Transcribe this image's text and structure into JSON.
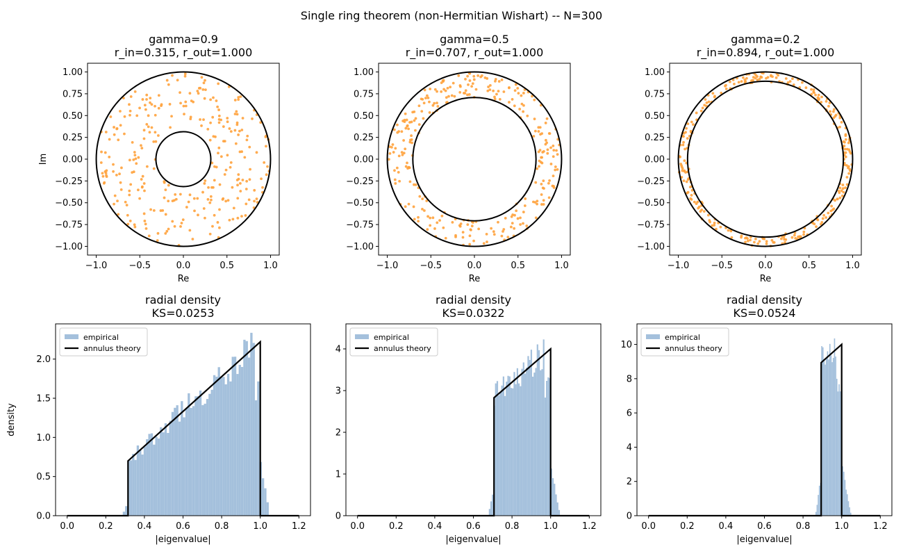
{
  "suptitle": "Single ring theorem (non-Hermitian Wishart) -- N=300",
  "colors": {
    "scatter": "#ffa23c",
    "hist_fill": "#a4c0dc",
    "theory_line": "#000000",
    "axes": "#000000"
  },
  "chart_data": [
    {
      "type": "scatter",
      "title_lines": [
        "gamma=0.9",
        "r_in=0.315, r_out=1.000"
      ],
      "xlabel": "Re",
      "ylabel": "Im",
      "xlim": [
        -1.1,
        1.1
      ],
      "ylim": [
        -1.1,
        1.1
      ],
      "xticks": [
        "−1.0",
        "−0.5",
        "0.0",
        "0.5",
        "1.0"
      ],
      "xtick_values": [
        -1.0,
        -0.5,
        0.0,
        0.5,
        1.0
      ],
      "yticks": [
        "1.00",
        "0.75",
        "0.50",
        "0.25",
        "0.00",
        "−0.25",
        "−0.50",
        "−0.75",
        "−1.00"
      ],
      "ytick_values": [
        1.0,
        0.75,
        0.5,
        0.25,
        0.0,
        -0.25,
        -0.5,
        -0.75,
        -1.0
      ],
      "gamma": 0.9,
      "r_in": 0.315,
      "r_out": 1.0,
      "n_points": 300
    },
    {
      "type": "scatter",
      "title_lines": [
        "gamma=0.5",
        "r_in=0.707, r_out=1.000"
      ],
      "xlabel": "Re",
      "ylabel": "",
      "xlim": [
        -1.1,
        1.1
      ],
      "ylim": [
        -1.1,
        1.1
      ],
      "xticks": [
        "−1.0",
        "−0.5",
        "0.0",
        "0.5",
        "1.0"
      ],
      "xtick_values": [
        -1.0,
        -0.5,
        0.0,
        0.5,
        1.0
      ],
      "yticks": [
        "1.00",
        "0.75",
        "0.50",
        "0.25",
        "0.00",
        "−0.25",
        "−0.50",
        "−0.75",
        "−1.00"
      ],
      "ytick_values": [
        1.0,
        0.75,
        0.5,
        0.25,
        0.0,
        -0.25,
        -0.5,
        -0.75,
        -1.0
      ],
      "gamma": 0.5,
      "r_in": 0.707,
      "r_out": 1.0,
      "n_points": 300
    },
    {
      "type": "scatter",
      "title_lines": [
        "gamma=0.2",
        "r_in=0.894, r_out=1.000"
      ],
      "xlabel": "Re",
      "ylabel": "",
      "xlim": [
        -1.1,
        1.1
      ],
      "ylim": [
        -1.1,
        1.1
      ],
      "xticks": [
        "−1.0",
        "−0.5",
        "0.0",
        "0.5",
        "1.0"
      ],
      "xtick_values": [
        -1.0,
        -0.5,
        0.0,
        0.5,
        1.0
      ],
      "yticks": [
        "1.00",
        "0.75",
        "0.50",
        "0.25",
        "0.00",
        "−0.25",
        "−0.50",
        "−0.75",
        "−1.00"
      ],
      "ytick_values": [
        1.0,
        0.75,
        0.5,
        0.25,
        0.0,
        -0.25,
        -0.5,
        -0.75,
        -1.0
      ],
      "gamma": 0.2,
      "r_in": 0.894,
      "r_out": 1.0,
      "n_points": 300
    },
    {
      "type": "bar",
      "title_lines": [
        "radial density",
        "KS=0.0253"
      ],
      "xlabel": "|eigenvalue|",
      "ylabel": "density",
      "xlim": [
        -0.06,
        1.26
      ],
      "ylim": [
        0,
        2.45
      ],
      "xticks": [
        "0.0",
        "0.2",
        "0.4",
        "0.6",
        "0.8",
        "1.0",
        "1.2"
      ],
      "xtick_values": [
        0.0,
        0.2,
        0.4,
        0.6,
        0.8,
        1.0,
        1.2
      ],
      "yticks": [
        "0.0",
        "0.5",
        "1.0",
        "1.5",
        "2.0"
      ],
      "ytick_values": [
        0.0,
        0.5,
        1.0,
        1.5,
        2.0
      ],
      "legend": [
        "empirical",
        "annulus theory"
      ],
      "legend_position": "upper-left",
      "bin_range": [
        0.0,
        1.2
      ],
      "bin_count": 100,
      "r_in": 0.315,
      "r_out": 1.0,
      "theory_peak": 2.22
    },
    {
      "type": "bar",
      "title_lines": [
        "radial density",
        "KS=0.0322"
      ],
      "xlabel": "|eigenvalue|",
      "ylabel": "",
      "xlim": [
        -0.06,
        1.26
      ],
      "ylim": [
        0,
        4.6
      ],
      "xticks": [
        "0.0",
        "0.2",
        "0.4",
        "0.6",
        "0.8",
        "1.0",
        "1.2"
      ],
      "xtick_values": [
        0.0,
        0.2,
        0.4,
        0.6,
        0.8,
        1.0,
        1.2
      ],
      "yticks": [
        "0",
        "1",
        "2",
        "3",
        "4"
      ],
      "ytick_values": [
        0,
        1,
        2,
        3,
        4
      ],
      "legend": [
        "empirical",
        "annulus theory"
      ],
      "legend_position": "upper-left",
      "bin_range": [
        0.0,
        1.2
      ],
      "bin_count": 150,
      "r_in": 0.707,
      "r_out": 1.0,
      "theory_peak": 4.0
    },
    {
      "type": "bar",
      "title_lines": [
        "radial density",
        "KS=0.0524"
      ],
      "xlabel": "|eigenvalue|",
      "ylabel": "",
      "xlim": [
        -0.06,
        1.26
      ],
      "ylim": [
        0,
        11.2
      ],
      "xticks": [
        "0.0",
        "0.2",
        "0.4",
        "0.6",
        "0.8",
        "1.0",
        "1.2"
      ],
      "xtick_values": [
        0.0,
        0.2,
        0.4,
        0.6,
        0.8,
        1.0,
        1.2
      ],
      "yticks": [
        "0",
        "2",
        "4",
        "6",
        "8",
        "10"
      ],
      "ytick_values": [
        0,
        2,
        4,
        6,
        8,
        10
      ],
      "legend": [
        "empirical",
        "annulus theory"
      ],
      "legend_position": "upper-left",
      "bin_range": [
        0.0,
        1.2
      ],
      "bin_count": 200,
      "r_in": 0.894,
      "r_out": 1.0,
      "theory_peak": 10.0
    }
  ]
}
